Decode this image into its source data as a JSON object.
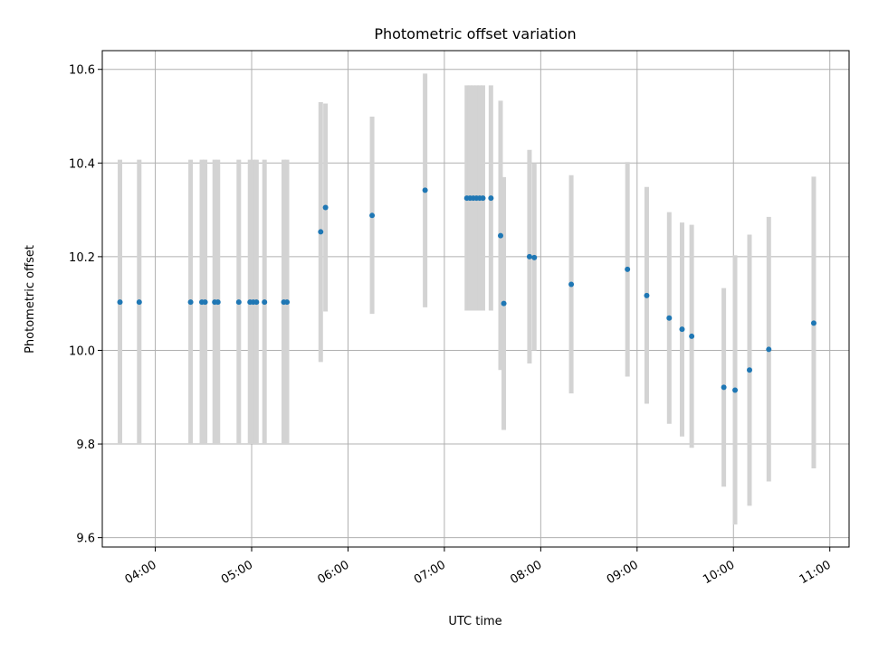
{
  "chart_data": {
    "type": "scatter",
    "title": "Photometric offset variation",
    "xlabel": "UTC time",
    "ylabel": "Photometric offset",
    "xticks": [
      "04:00",
      "05:00",
      "06:00",
      "07:00",
      "08:00",
      "09:00",
      "10:00",
      "11:00"
    ],
    "yticks": [
      "9.6",
      "9.8",
      "10.0",
      "10.2",
      "10.4",
      "10.6"
    ],
    "xlim": [
      "03:27",
      "11:12"
    ],
    "ylim": [
      9.58,
      10.64
    ],
    "grid": true,
    "colors": {
      "points": "#1f77b4",
      "errorbars": "#d3d3d3",
      "grid": "#b0b0b0"
    },
    "points": [
      {
        "t": "03:38",
        "y": 10.103,
        "lo": 9.8,
        "hi": 10.407
      },
      {
        "t": "03:50",
        "y": 10.103,
        "lo": 9.8,
        "hi": 10.407
      },
      {
        "t": "04:22",
        "y": 10.103,
        "lo": 9.8,
        "hi": 10.407
      },
      {
        "t": "04:29",
        "y": 10.103,
        "lo": 9.8,
        "hi": 10.407
      },
      {
        "t": "04:31",
        "y": 10.103,
        "lo": 9.8,
        "hi": 10.407
      },
      {
        "t": "04:37",
        "y": 10.103,
        "lo": 9.8,
        "hi": 10.407
      },
      {
        "t": "04:39",
        "y": 10.103,
        "lo": 9.8,
        "hi": 10.407
      },
      {
        "t": "04:52",
        "y": 10.103,
        "lo": 9.8,
        "hi": 10.407
      },
      {
        "t": "04:59",
        "y": 10.103,
        "lo": 9.8,
        "hi": 10.407
      },
      {
        "t": "05:01",
        "y": 10.103,
        "lo": 9.8,
        "hi": 10.407
      },
      {
        "t": "05:03",
        "y": 10.103,
        "lo": 9.8,
        "hi": 10.407
      },
      {
        "t": "05:08",
        "y": 10.103,
        "lo": 9.8,
        "hi": 10.407
      },
      {
        "t": "05:20",
        "y": 10.103,
        "lo": 9.8,
        "hi": 10.407
      },
      {
        "t": "05:22",
        "y": 10.103,
        "lo": 9.8,
        "hi": 10.407
      },
      {
        "t": "05:43",
        "y": 10.253,
        "lo": 9.975,
        "hi": 10.53
      },
      {
        "t": "05:46",
        "y": 10.305,
        "lo": 10.083,
        "hi": 10.527
      },
      {
        "t": "06:15",
        "y": 10.288,
        "lo": 10.078,
        "hi": 10.499
      },
      {
        "t": "06:48",
        "y": 10.342,
        "lo": 10.092,
        "hi": 10.591
      },
      {
        "t": "07:14",
        "y": 10.325,
        "lo": 10.085,
        "hi": 10.566
      },
      {
        "t": "07:16",
        "y": 10.325,
        "lo": 10.085,
        "hi": 10.566
      },
      {
        "t": "07:18",
        "y": 10.325,
        "lo": 10.085,
        "hi": 10.566
      },
      {
        "t": "07:20",
        "y": 10.325,
        "lo": 10.085,
        "hi": 10.566
      },
      {
        "t": "07:22",
        "y": 10.325,
        "lo": 10.085,
        "hi": 10.566
      },
      {
        "t": "07:24",
        "y": 10.325,
        "lo": 10.085,
        "hi": 10.566
      },
      {
        "t": "07:29",
        "y": 10.325,
        "lo": 10.085,
        "hi": 10.566
      },
      {
        "t": "07:35",
        "y": 10.245,
        "lo": 9.958,
        "hi": 10.533
      },
      {
        "t": "07:37",
        "y": 10.1,
        "lo": 9.83,
        "hi": 10.37
      },
      {
        "t": "07:53",
        "y": 10.2,
        "lo": 9.972,
        "hi": 10.428
      },
      {
        "t": "07:56",
        "y": 10.198,
        "lo": 10.0,
        "hi": 10.4
      },
      {
        "t": "08:19",
        "y": 10.141,
        "lo": 9.908,
        "hi": 10.374
      },
      {
        "t": "08:54",
        "y": 10.173,
        "lo": 9.944,
        "hi": 10.402
      },
      {
        "t": "09:06",
        "y": 10.117,
        "lo": 9.886,
        "hi": 10.349
      },
      {
        "t": "09:20",
        "y": 10.069,
        "lo": 9.843,
        "hi": 10.295
      },
      {
        "t": "09:28",
        "y": 10.045,
        "lo": 9.816,
        "hi": 10.273
      },
      {
        "t": "09:34",
        "y": 10.03,
        "lo": 9.792,
        "hi": 10.268
      },
      {
        "t": "09:54",
        "y": 9.921,
        "lo": 9.709,
        "hi": 10.133
      },
      {
        "t": "10:01",
        "y": 9.915,
        "lo": 9.628,
        "hi": 10.203
      },
      {
        "t": "10:10",
        "y": 9.958,
        "lo": 9.668,
        "hi": 10.247
      },
      {
        "t": "10:22",
        "y": 10.002,
        "lo": 9.72,
        "hi": 10.285
      },
      {
        "t": "10:50",
        "y": 10.058,
        "lo": 9.748,
        "hi": 10.371
      }
    ]
  }
}
